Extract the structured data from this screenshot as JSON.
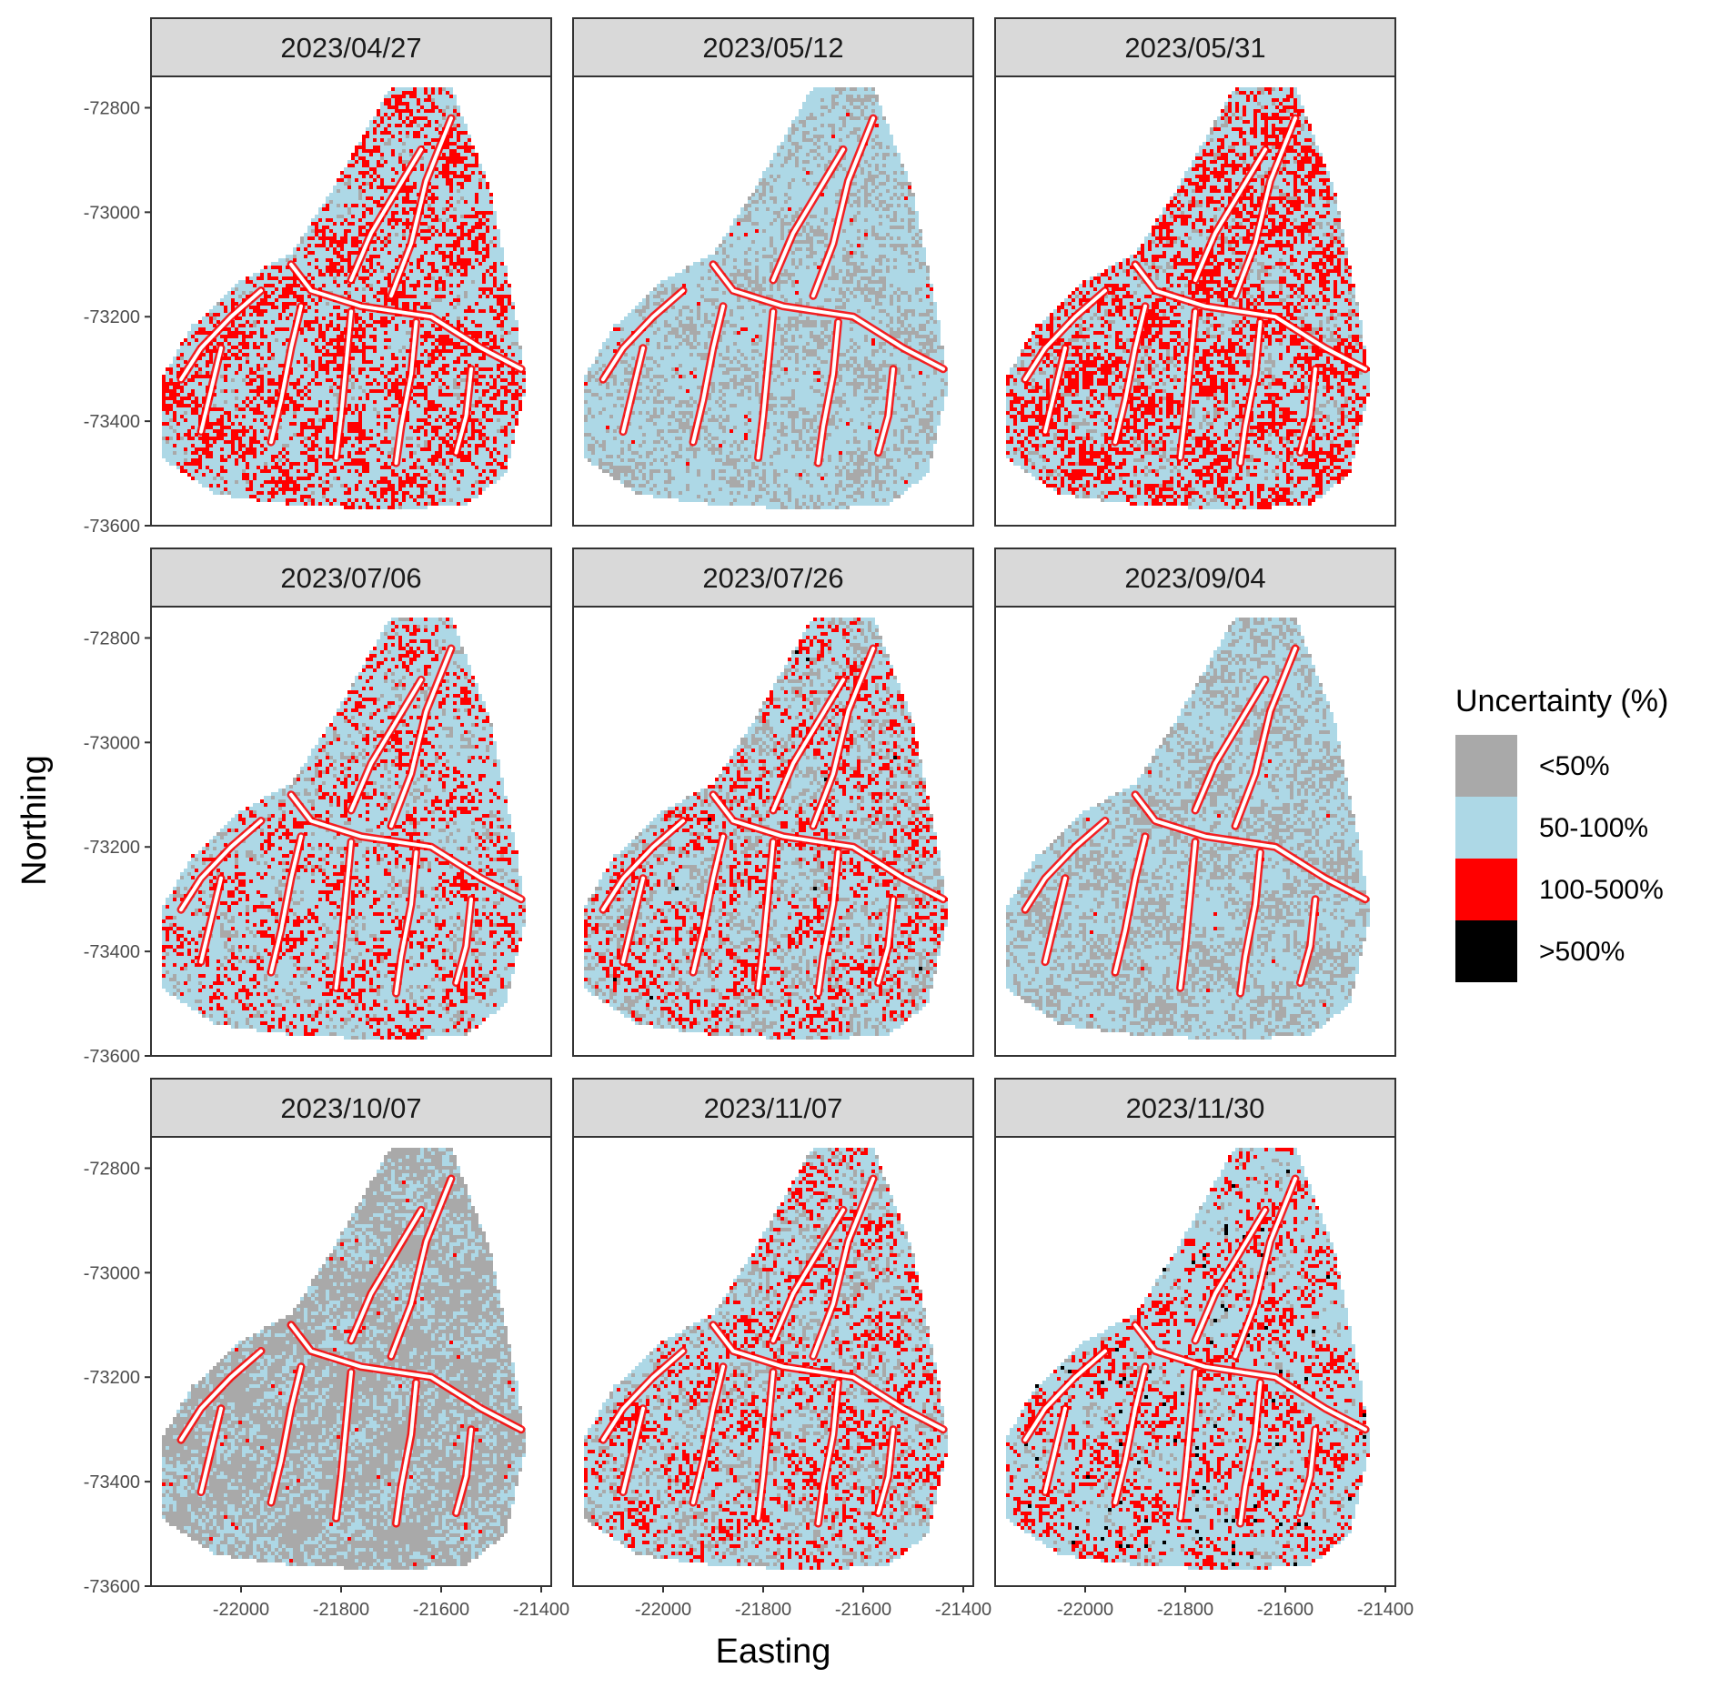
{
  "chart_data": {
    "type": "heatmap",
    "facets": [
      {
        "date": "2023/04/27",
        "red": 0.48,
        "lightblue": 0.4,
        "grey": 0.12,
        "black": 0.0
      },
      {
        "date": "2023/05/12",
        "red": 0.18,
        "lightblue": 0.5,
        "grey": 0.32,
        "black": 0.0
      },
      {
        "date": "2023/05/31",
        "red": 0.5,
        "lightblue": 0.32,
        "grey": 0.18,
        "black": 0.0
      },
      {
        "date": "2023/07/06",
        "red": 0.4,
        "lightblue": 0.4,
        "grey": 0.2,
        "black": 0.0
      },
      {
        "date": "2023/07/26",
        "red": 0.4,
        "lightblue": 0.32,
        "grey": 0.28,
        "black": 0.002
      },
      {
        "date": "2023/09/04",
        "red": 0.14,
        "lightblue": 0.5,
        "grey": 0.36,
        "black": 0.0
      },
      {
        "date": "2023/10/07",
        "red": 0.18,
        "lightblue": 0.3,
        "grey": 0.52,
        "black": 0.0
      },
      {
        "date": "2023/11/07",
        "red": 0.4,
        "lightblue": 0.34,
        "grey": 0.26,
        "black": 0.0
      },
      {
        "date": "2023/11/30",
        "red": 0.4,
        "lightblue": 0.44,
        "grey": 0.15,
        "black": 0.01
      }
    ],
    "xlabel": "Easting",
    "ylabel": "Northing",
    "xlim": [
      -22180,
      -21380
    ],
    "ylim": [
      -73600,
      -72740
    ],
    "x_ticks": [
      -22000,
      -21800,
      -21600,
      -21400
    ],
    "x_tick_labels": [
      "-22000",
      "-21800",
      "-21600",
      "-21400"
    ],
    "y_ticks": [
      -72800,
      -73000,
      -73200,
      -73400,
      -73600
    ],
    "y_tick_labels": [
      "-72800",
      "-73000",
      "-73200",
      "-73400",
      "-73600"
    ],
    "legend": {
      "title": "Uncertainty (%)",
      "position": "right",
      "items": [
        {
          "label": "<50%",
          "color": "#A9A9A9"
        },
        {
          "label": "50-100%",
          "color": "#ADD8E6"
        },
        {
          "label": "100-500%",
          "color": "#FF0000"
        },
        {
          "label": ">500%",
          "color": "#000000"
        }
      ]
    },
    "boundary": [
      [
        -21700,
        -72760
      ],
      [
        -21580,
        -72760
      ],
      [
        -21500,
        -72960
      ],
      [
        -21450,
        -73200
      ],
      [
        -21430,
        -73330
      ],
      [
        -21470,
        -73500
      ],
      [
        -21550,
        -73560
      ],
      [
        -21700,
        -73570
      ],
      [
        -21900,
        -73560
      ],
      [
        -22050,
        -73540
      ],
      [
        -22160,
        -73470
      ],
      [
        -22160,
        -73320
      ],
      [
        -22100,
        -73220
      ],
      [
        -22000,
        -73130
      ],
      [
        -21900,
        -73080
      ],
      [
        -21820,
        -72960
      ]
    ],
    "streams": [
      [
        [
          -21580,
          -72820
        ],
        [
          -21630,
          -72940
        ],
        [
          -21660,
          -73060
        ],
        [
          -21700,
          -73160
        ]
      ],
      [
        [
          -21640,
          -72880
        ],
        [
          -21690,
          -72960
        ],
        [
          -21740,
          -73040
        ],
        [
          -21780,
          -73130
        ]
      ],
      [
        [
          -21900,
          -73100
        ],
        [
          -21860,
          -73150
        ],
        [
          -21760,
          -73180
        ],
        [
          -21620,
          -73200
        ],
        [
          -21520,
          -73260
        ],
        [
          -21440,
          -73300
        ]
      ],
      [
        [
          -21960,
          -73150
        ],
        [
          -22020,
          -73200
        ],
        [
          -22080,
          -73260
        ],
        [
          -22120,
          -73320
        ]
      ],
      [
        [
          -21880,
          -73180
        ],
        [
          -21900,
          -73260
        ],
        [
          -21920,
          -73360
        ],
        [
          -21940,
          -73440
        ]
      ],
      [
        [
          -21780,
          -73190
        ],
        [
          -21790,
          -73290
        ],
        [
          -21800,
          -73390
        ],
        [
          -21810,
          -73470
        ]
      ],
      [
        [
          -21650,
          -73210
        ],
        [
          -21660,
          -73310
        ],
        [
          -21680,
          -73410
        ],
        [
          -21690,
          -73480
        ]
      ],
      [
        [
          -21540,
          -73300
        ],
        [
          -21550,
          -73390
        ],
        [
          -21570,
          -73460
        ]
      ],
      [
        [
          -22040,
          -73260
        ],
        [
          -22060,
          -73340
        ],
        [
          -22080,
          -73420
        ]
      ]
    ]
  }
}
